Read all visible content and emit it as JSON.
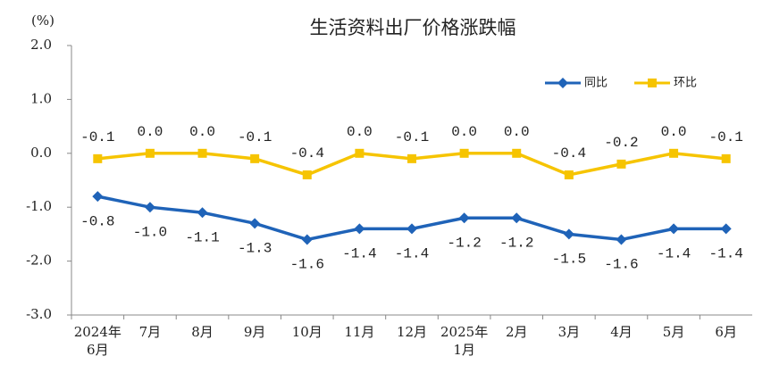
{
  "chart_data": {
    "type": "line",
    "title": "生活资料出厂价格涨跌幅",
    "y_label": "(%)",
    "categories": [
      "2024年\n6月",
      "7月",
      "8月",
      "9月",
      "10月",
      "11月",
      "12月",
      "2025年\n1月",
      "2月",
      "3月",
      "4月",
      "5月",
      "6月"
    ],
    "series": [
      {
        "name": "同比",
        "color": "#1f63b8",
        "marker": "diamond",
        "values": [
          -0.8,
          -1.0,
          -1.1,
          -1.3,
          -1.6,
          -1.4,
          -1.4,
          -1.2,
          -1.2,
          -1.5,
          -1.6,
          -1.4,
          -1.4
        ],
        "value_labels": [
          "-0.8",
          "-1.0",
          "-1.1",
          "-1.3",
          "-1.6",
          "-1.4",
          "-1.4",
          "-1.2",
          "-1.2",
          "-1.5",
          "-1.6",
          "-1.4",
          "-1.4"
        ]
      },
      {
        "name": "环比",
        "color": "#f6c400",
        "marker": "square",
        "values": [
          -0.1,
          0,
          0,
          -0.1,
          -0.4,
          0,
          -0.1,
          0,
          0,
          -0.4,
          -0.2,
          0,
          -0.1
        ],
        "value_labels": [
          "-0.1",
          "0.0",
          "0.0",
          "-0.1",
          "-0.4",
          "0.0",
          "-0.1",
          "0.0",
          "0.0",
          "-0.4",
          "-0.2",
          "0.0",
          "-0.1"
        ]
      }
    ],
    "ylim": [
      -3,
      2
    ],
    "yticks": [
      {
        "value": 2,
        "label": "2.0"
      },
      {
        "value": 1,
        "label": "1.0"
      },
      {
        "value": 0,
        "label": "0.0"
      },
      {
        "value": -1,
        "label": "-1.0"
      },
      {
        "value": -2,
        "label": "-2.0"
      },
      {
        "value": -3,
        "label": "-3.0"
      }
    ],
    "legend": "top-right",
    "grid": false
  }
}
